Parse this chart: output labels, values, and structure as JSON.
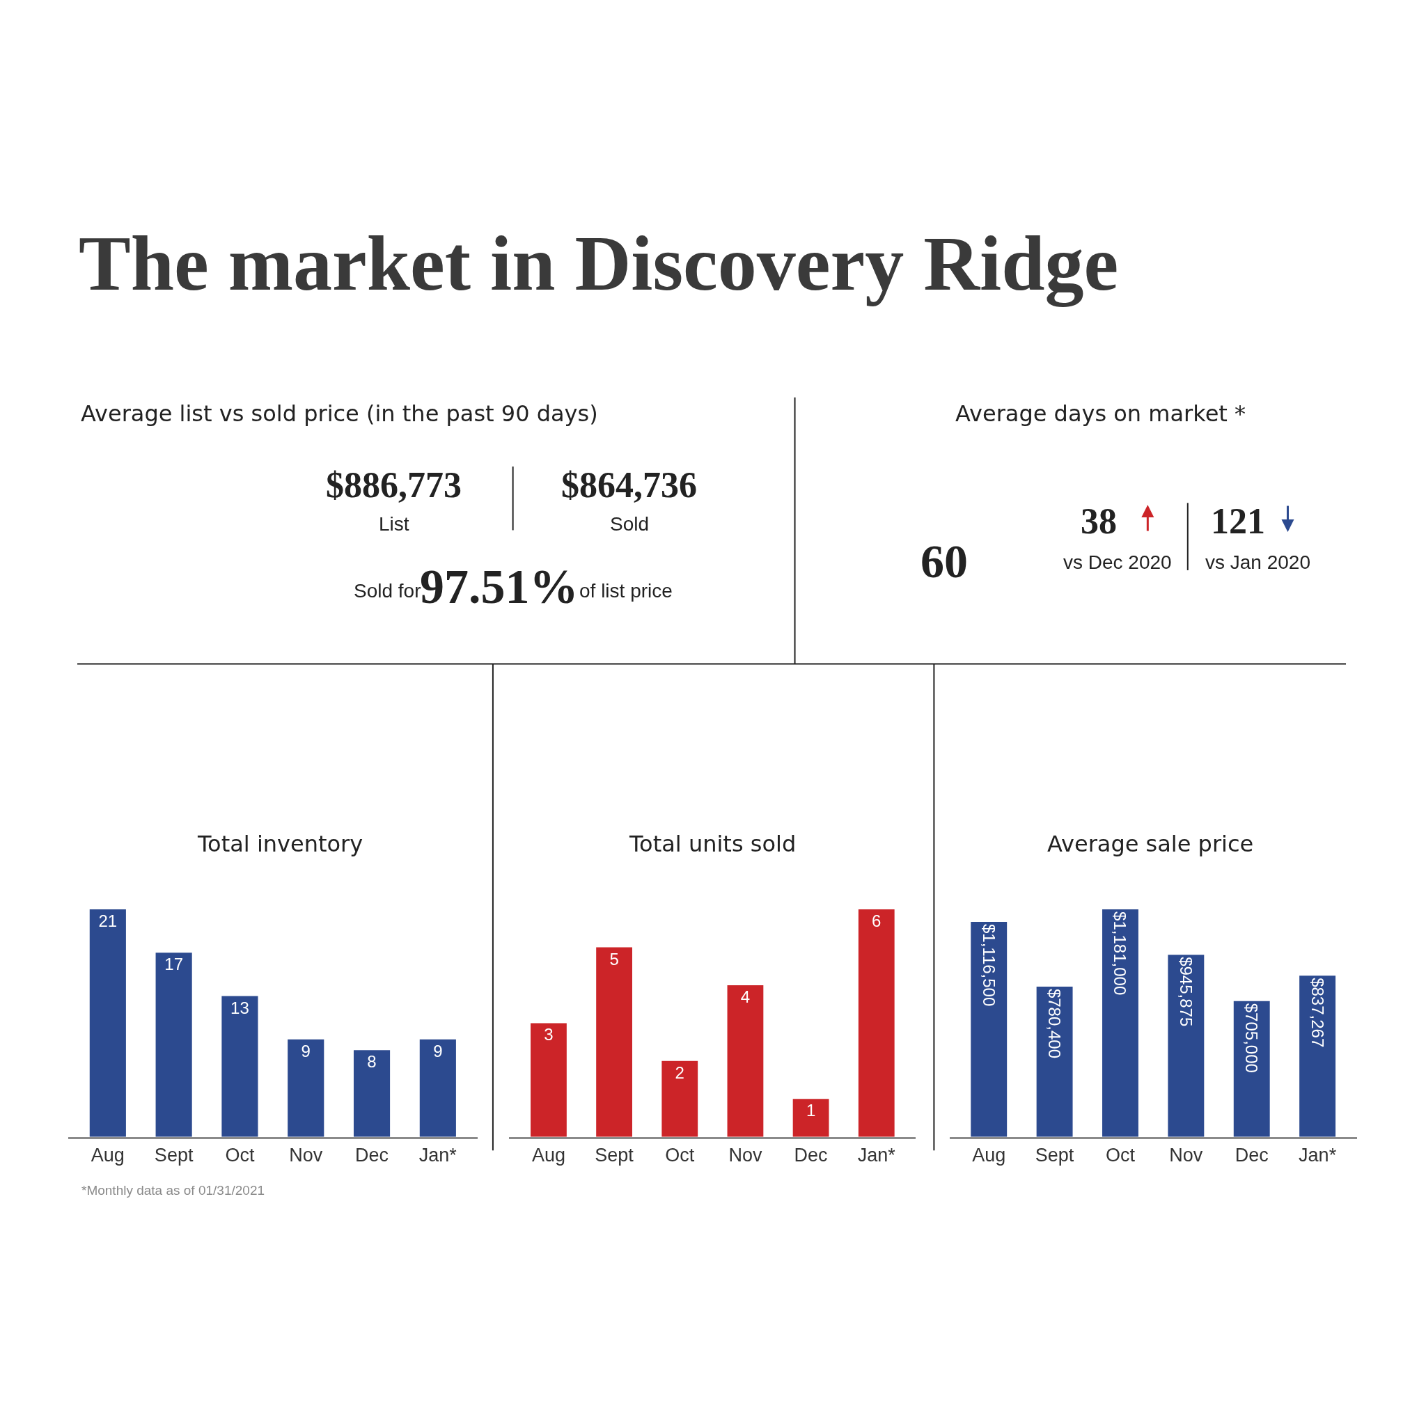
{
  "chart_data": [
    {
      "type": "other",
      "title": "The market in Discovery Ridge"
    },
    {
      "type": "other",
      "title": "Average list vs sold price (in the past 90 days)",
      "annotations": [
        "$886,773",
        "List",
        "$864,736",
        "Sold",
        "Sold for",
        "97.51%",
        "of list price"
      ]
    },
    {
      "type": "other",
      "title": "Average days on market *",
      "annotations": [
        "60",
        "38",
        "vs Dec 2020",
        "121",
        "vs Jan 2020"
      ]
    },
    {
      "type": "bar",
      "title": "Total inventory",
      "categories": [
        "Aug",
        "Sept",
        "Oct",
        "Nov",
        "Dec",
        "Jan*"
      ],
      "values": [
        21,
        17,
        13,
        9,
        8,
        9
      ],
      "color": "#2c4a8f",
      "data_labels": true,
      "annotations": [
        "*Monthly data as of 01/31/2021"
      ]
    },
    {
      "type": "bar",
      "title": "Total units sold",
      "categories": [
        "Aug",
        "Sept",
        "Oct",
        "Nov",
        "Dec",
        "Jan*"
      ],
      "values": [
        3,
        5,
        2,
        4,
        1,
        6
      ],
      "color": "#cc2428",
      "data_labels": true
    },
    {
      "type": "bar",
      "title": "Average sale price",
      "categories": [
        "Aug",
        "Sept",
        "Oct",
        "Nov",
        "Dec",
        "Jan*"
      ],
      "values": [
        1116500,
        780400,
        1181000,
        945875,
        705000,
        837267
      ],
      "color": "#2c4a8f",
      "value_labels": [
        "$1,116,500",
        "$780,400",
        "$1,181,000",
        "$945,875",
        "$705,000",
        "$837,267"
      ]
    }
  ]
}
